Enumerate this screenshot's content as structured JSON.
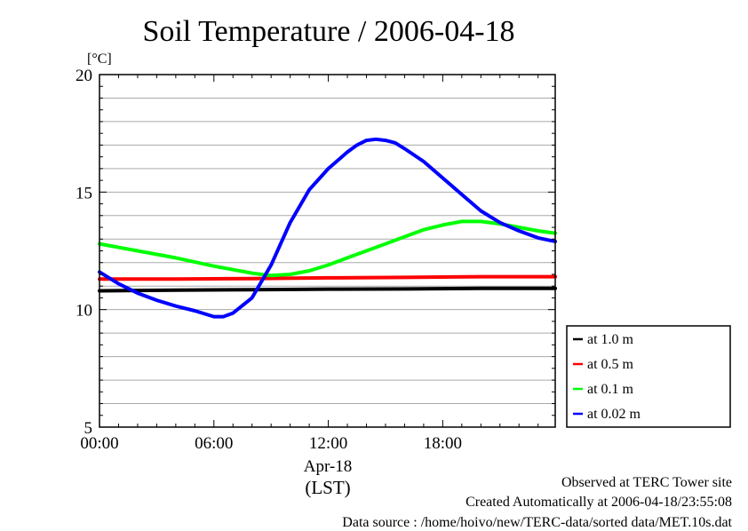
{
  "chart_data": {
    "type": "line",
    "title": "Soil Temperature / 2006-04-18",
    "ylabel": "[°C]",
    "xlabel": "Apr-18",
    "xunit": "(LST)",
    "ylim": [
      5,
      20
    ],
    "xlim": [
      0,
      23.9
    ],
    "yticks": [
      5,
      10,
      15,
      20
    ],
    "xticks": [
      {
        "value": 0,
        "label": "00:00"
      },
      {
        "value": 6,
        "label": "06:00"
      },
      {
        "value": 12,
        "label": "12:00"
      },
      {
        "value": 18,
        "label": "18:00"
      }
    ],
    "grid": true,
    "legend_position": "right",
    "series": [
      {
        "name": "at 1.0 m",
        "color": "#000000",
        "x": [
          0,
          4,
          8,
          12,
          16,
          20,
          23.9
        ],
        "y": [
          10.8,
          10.83,
          10.85,
          10.87,
          10.88,
          10.9,
          10.9
        ]
      },
      {
        "name": "at 0.5 m",
        "color": "#ff0000",
        "x": [
          0,
          4,
          8,
          12,
          16,
          20,
          23.9
        ],
        "y": [
          11.3,
          11.3,
          11.32,
          11.35,
          11.37,
          11.4,
          11.4
        ]
      },
      {
        "name": "at 0.1 m",
        "color": "#00ff00",
        "x": [
          0,
          2,
          4,
          6,
          8,
          9,
          10,
          11,
          12,
          13,
          14,
          15,
          16,
          17,
          18,
          19,
          20,
          21,
          22,
          23,
          23.9
        ],
        "y": [
          12.8,
          12.5,
          12.2,
          11.85,
          11.55,
          11.45,
          11.5,
          11.65,
          11.9,
          12.2,
          12.5,
          12.8,
          13.1,
          13.4,
          13.6,
          13.75,
          13.75,
          13.65,
          13.5,
          13.35,
          13.25
        ]
      },
      {
        "name": "at 0.02 m",
        "color": "#0000ff",
        "x": [
          0,
          1,
          2,
          3,
          4,
          5,
          6,
          6.5,
          7,
          8,
          9,
          10,
          11,
          12,
          13,
          13.5,
          14,
          14.5,
          15,
          15.5,
          16,
          17,
          18,
          19,
          20,
          21,
          22,
          23,
          23.9
        ],
        "y": [
          11.6,
          11.1,
          10.7,
          10.4,
          10.15,
          9.95,
          9.7,
          9.7,
          9.85,
          10.5,
          11.9,
          13.7,
          15.1,
          16.0,
          16.7,
          17.0,
          17.2,
          17.25,
          17.2,
          17.1,
          16.85,
          16.3,
          15.6,
          14.9,
          14.2,
          13.7,
          13.35,
          13.05,
          12.9
        ]
      }
    ]
  },
  "footer": {
    "observed": "Observed at TERC Tower site",
    "created": "Created Automatically at 2006-04-18/23:55:08",
    "source": "Data source : /home/hoivo/new/TERC-data/sorted  data/MET.10s.dat"
  }
}
